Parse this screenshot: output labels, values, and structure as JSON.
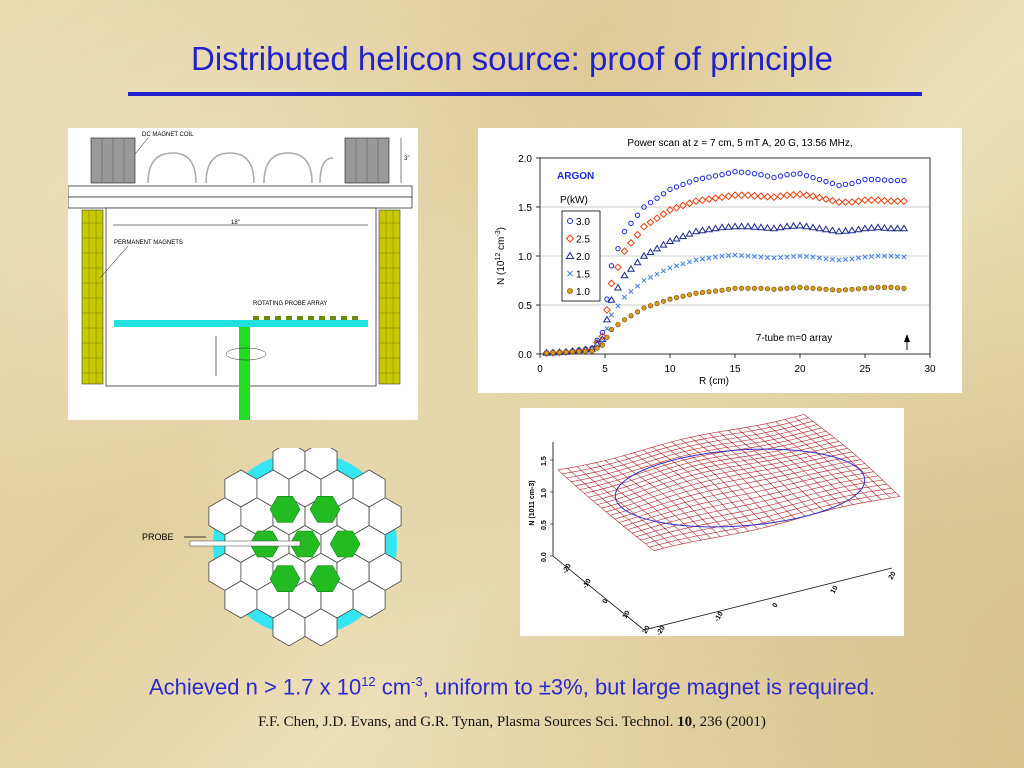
{
  "slide": {
    "title": "Distributed helicon source: proof of principle",
    "caption_pre": "Achieved n > 1.7 x 10",
    "caption_exp1": "12",
    "caption_mid": " cm",
    "caption_exp2": "-3",
    "caption_post": ", uniform to ±3%, but large magnet is required.",
    "citation_authors": "F.F. Chen, J.D. Evans, and G.R. Tynan, Plasma Sources Sci. Technol. ",
    "citation_volume": "10",
    "citation_rest": ", 236 (2001)"
  },
  "apparatus": {
    "dc_magnet_coil": "DC MAGNET COIL",
    "height_dim": "3\"",
    "width_dim": "18\"",
    "permanent_magnets": "PERMANENT MAGNETS",
    "rotating_probe_array": "ROTATING PROBE ARRAY"
  },
  "tube_array": {
    "probe_label": "PROBE"
  },
  "surface_plot": {
    "z_axis_label": "N (1011 cm-3)",
    "z_ticks": [
      "0.0",
      "0.5",
      "1.0",
      "1.5"
    ],
    "x_ticks": [
      "-20",
      "-10",
      "0",
      "10",
      "20"
    ],
    "y_ticks": [
      "-20",
      "-10",
      "0",
      "10",
      "20"
    ]
  },
  "chart_data": {
    "type": "scatter",
    "title": "Power scan at z = 7 cm, 5 mT A, 20 G, 13.56 MHz,",
    "xlabel": "R (cm)",
    "ylabel_base": "N (10",
    "ylabel_exp": "12",
    "ylabel_unit": " cm",
    "ylabel_unit_exp": "-3",
    "ylabel_close": ")",
    "xlim": [
      0,
      30
    ],
    "ylim": [
      0,
      2.0
    ],
    "x_ticks": [
      "0",
      "5",
      "10",
      "15",
      "20",
      "25",
      "30"
    ],
    "y_ticks": [
      "0.0",
      "0.5",
      "1.0",
      "1.5",
      "2.0"
    ],
    "gas_label": "ARGON",
    "legend_title": "P(kW)",
    "annotation": "7-tube m=0 array",
    "series": [
      {
        "name": "3.0",
        "marker": "circle",
        "color": "#1a2ad8",
        "x": [
          0.5,
          2,
          4,
          4.8,
          5.5,
          6.5,
          8,
          10,
          12,
          14,
          15,
          16,
          17,
          18,
          19,
          20,
          21,
          22,
          23,
          24,
          25,
          26,
          27,
          28
        ],
        "y": [
          0.01,
          0.02,
          0.06,
          0.22,
          0.9,
          1.25,
          1.5,
          1.68,
          1.78,
          1.83,
          1.86,
          1.85,
          1.83,
          1.8,
          1.83,
          1.84,
          1.8,
          1.76,
          1.72,
          1.74,
          1.78,
          1.78,
          1.77,
          1.77
        ]
      },
      {
        "name": "2.5",
        "marker": "diamond",
        "color": "#e8400c",
        "x": [
          0.5,
          2,
          4,
          4.8,
          5.5,
          6.5,
          8,
          10,
          12,
          14,
          15,
          16,
          17,
          18,
          19,
          20,
          21,
          22,
          23,
          24,
          25,
          26,
          27,
          28
        ],
        "y": [
          0.01,
          0.02,
          0.05,
          0.18,
          0.72,
          1.05,
          1.3,
          1.47,
          1.56,
          1.6,
          1.62,
          1.62,
          1.61,
          1.6,
          1.62,
          1.63,
          1.61,
          1.58,
          1.55,
          1.55,
          1.57,
          1.57,
          1.56,
          1.56
        ]
      },
      {
        "name": "2.0",
        "marker": "triangle",
        "color": "#1c2a8c",
        "x": [
          0.5,
          2,
          4,
          4.8,
          5.5,
          6.5,
          8,
          10,
          12,
          14,
          15,
          16,
          17,
          18,
          19,
          20,
          21,
          22,
          23,
          24,
          25,
          26,
          27,
          28
        ],
        "y": [
          0.01,
          0.02,
          0.05,
          0.15,
          0.55,
          0.8,
          1.0,
          1.15,
          1.25,
          1.29,
          1.3,
          1.3,
          1.29,
          1.28,
          1.3,
          1.31,
          1.29,
          1.27,
          1.25,
          1.26,
          1.28,
          1.29,
          1.28,
          1.28
        ]
      },
      {
        "name": "1.5",
        "marker": "x",
        "color": "#3f7ee8",
        "x": [
          0.5,
          2,
          4,
          4.8,
          5.5,
          6.5,
          8,
          10,
          12,
          14,
          15,
          16,
          17,
          18,
          19,
          20,
          21,
          22,
          23,
          24,
          25,
          26,
          27,
          28
        ],
        "y": [
          0.01,
          0.02,
          0.04,
          0.12,
          0.4,
          0.58,
          0.75,
          0.88,
          0.96,
          1.0,
          1.01,
          1.0,
          0.99,
          0.98,
          0.99,
          1.0,
          0.99,
          0.97,
          0.96,
          0.97,
          0.99,
          1.0,
          1.0,
          0.99
        ]
      },
      {
        "name": "1.0",
        "marker": "circle-filled",
        "color": "#8a5a10",
        "x": [
          0.5,
          2,
          4,
          4.8,
          5.5,
          6.5,
          8,
          10,
          12,
          14,
          15,
          16,
          17,
          18,
          19,
          20,
          21,
          22,
          23,
          24,
          25,
          26,
          27,
          28
        ],
        "y": [
          0.01,
          0.02,
          0.03,
          0.09,
          0.25,
          0.35,
          0.47,
          0.56,
          0.62,
          0.65,
          0.67,
          0.67,
          0.67,
          0.66,
          0.67,
          0.68,
          0.67,
          0.66,
          0.65,
          0.66,
          0.67,
          0.68,
          0.68,
          0.67
        ]
      }
    ]
  }
}
